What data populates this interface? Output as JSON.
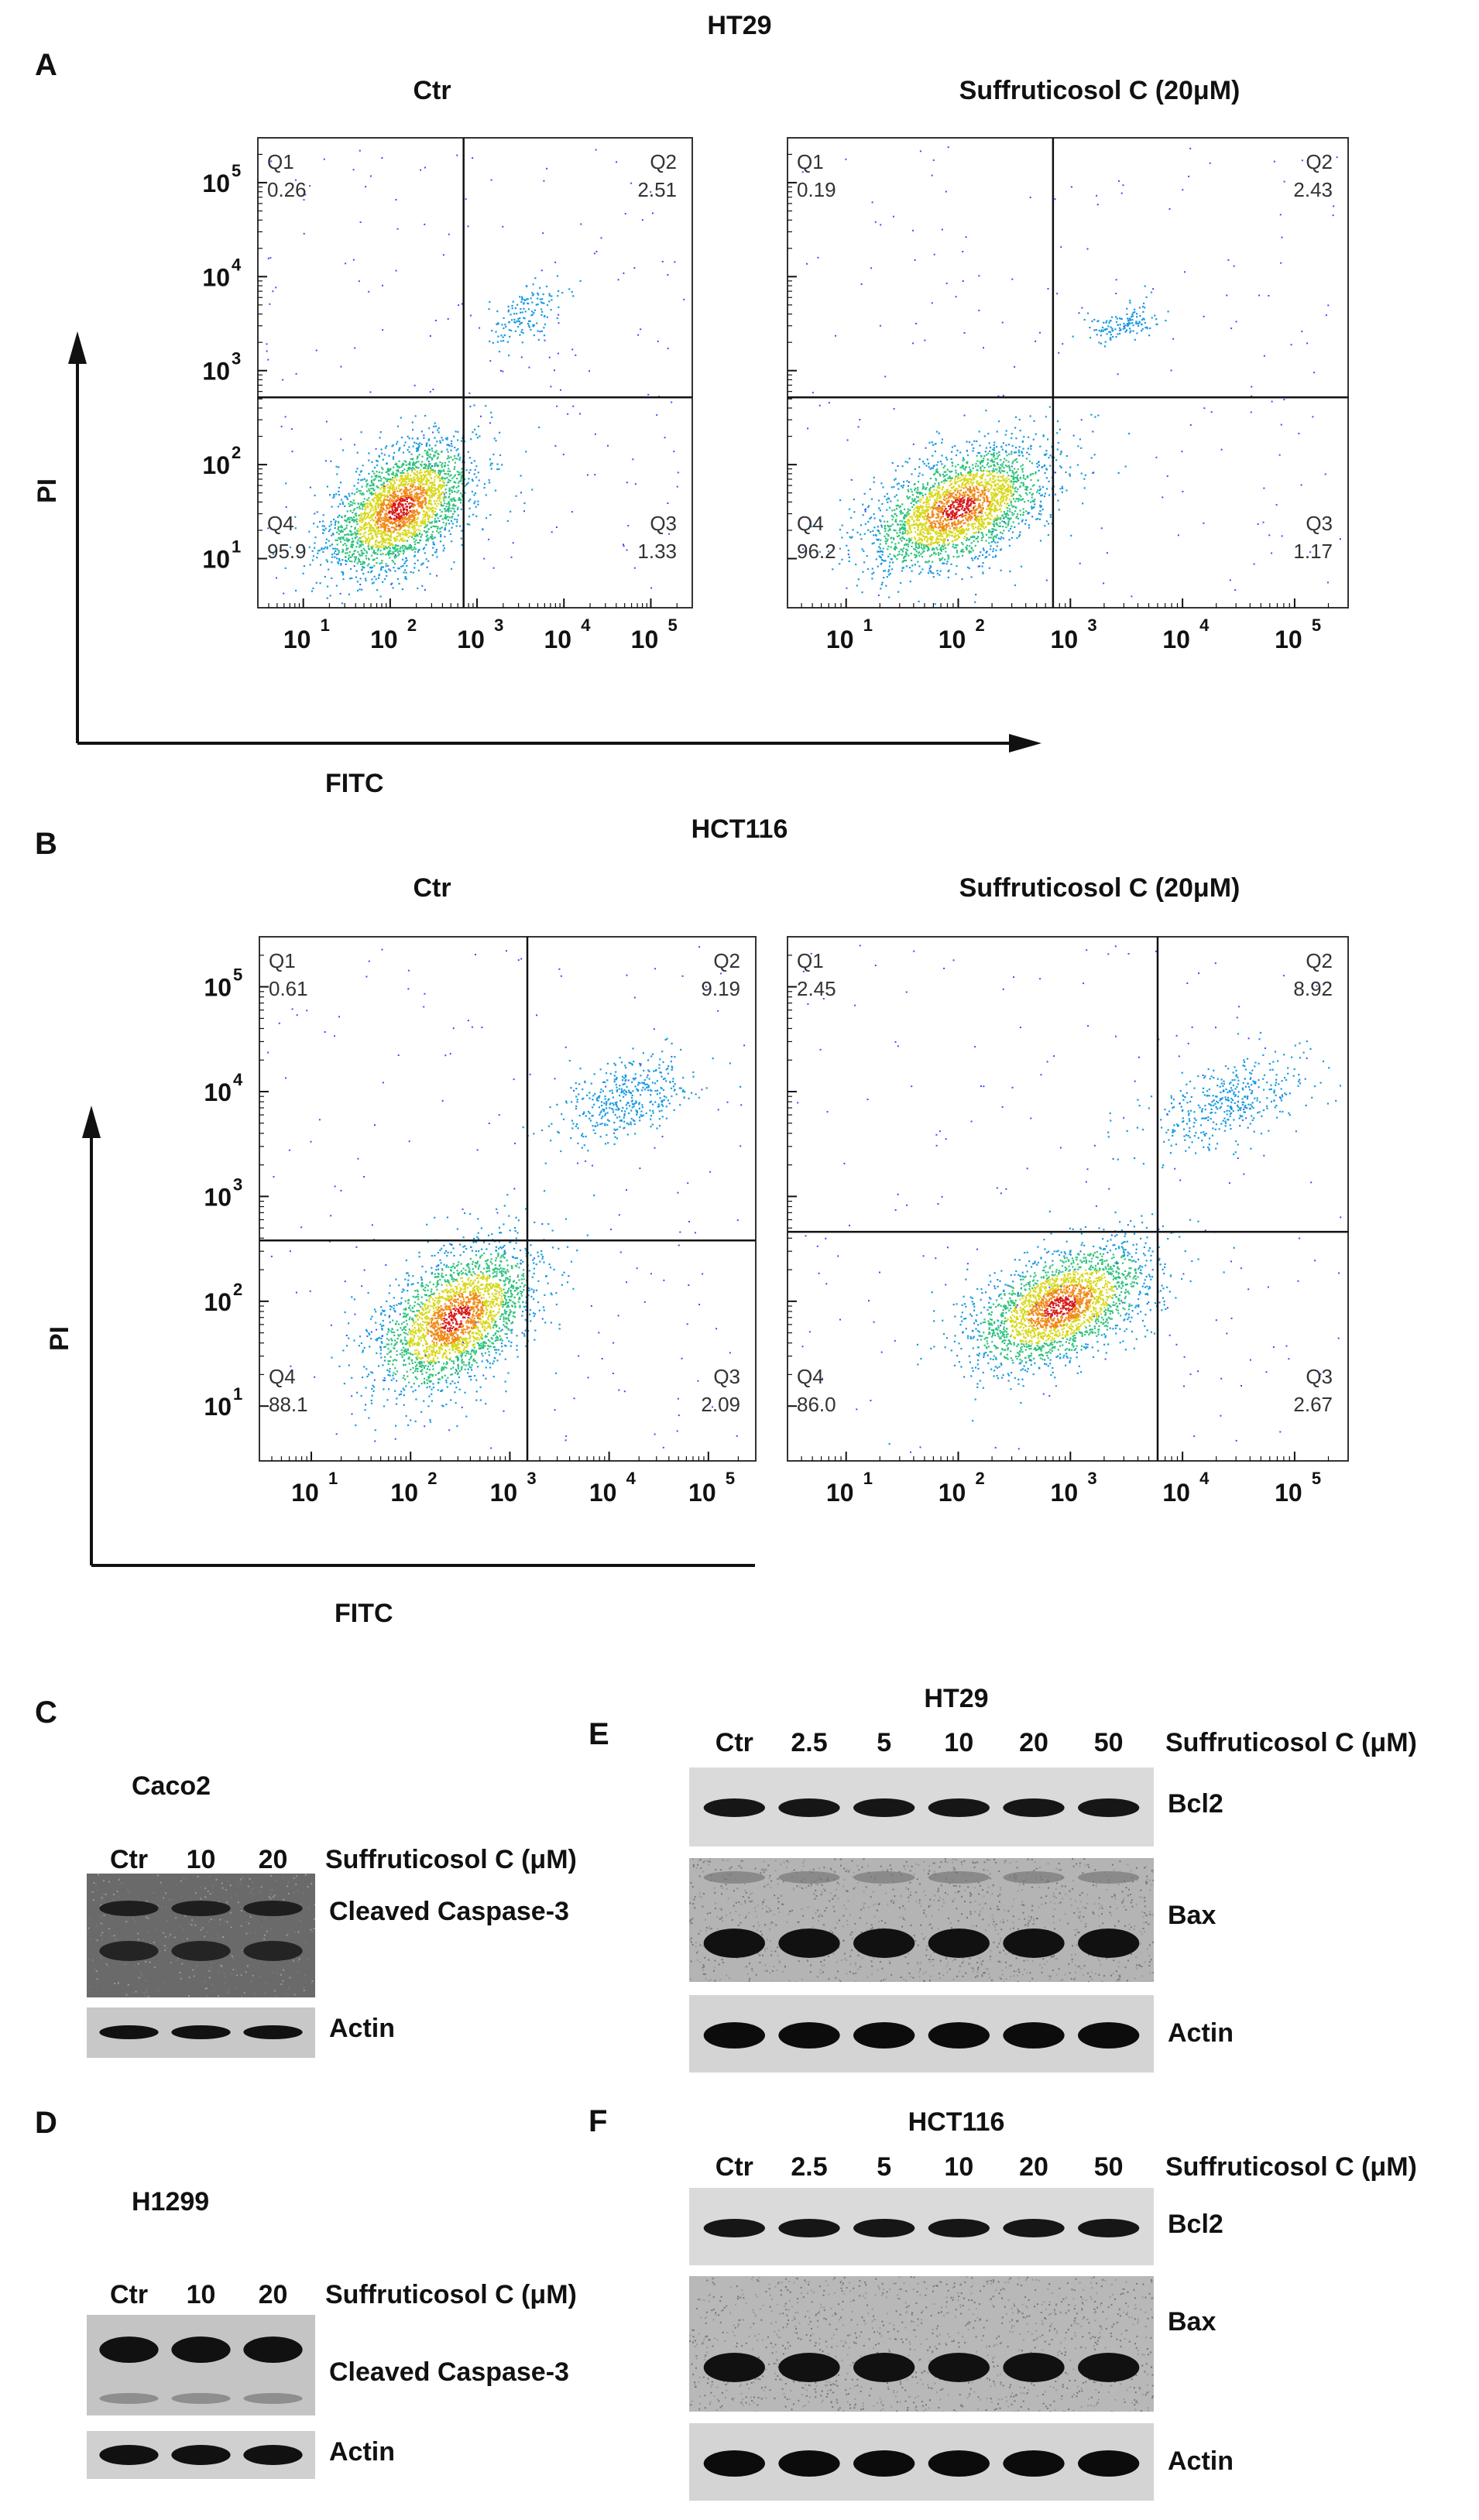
{
  "figure": {
    "panel_a": {
      "letter": "A",
      "cell_line": "HT29"
    },
    "panel_b": {
      "letter": "B",
      "cell_line": "HCT116"
    },
    "panel_c": {
      "letter": "C",
      "cell_line": "Caco2"
    },
    "panel_d": {
      "letter": "D",
      "cell_line": "H1299"
    },
    "panel_e": {
      "letter": "E",
      "cell_line": "HT29"
    },
    "panel_f": {
      "letter": "F",
      "cell_line": "HCT116"
    }
  },
  "axis": {
    "x": "FITC",
    "y": "PI"
  },
  "chart_data": [
    {
      "type": "scatter",
      "id": "A-ctr",
      "cell_line": "HT29",
      "title": "Ctr",
      "xlabel": "FITC",
      "ylabel": "PI",
      "xscale": "log",
      "yscale": "log",
      "x_ticks": [
        "10",
        "10",
        "10",
        "10",
        "10"
      ],
      "x_tick_exponents": [
        "1",
        "2",
        "3",
        "4",
        "5"
      ],
      "y_ticks": [
        "10",
        "10",
        "10",
        "10",
        "10"
      ],
      "y_tick_exponents": [
        "1",
        "2",
        "3",
        "4",
        "5"
      ],
      "xlim": [
        3,
        300000
      ],
      "ylim": [
        3,
        300000
      ],
      "gate": {
        "x": 700,
        "y": 520
      },
      "quadrants": [
        {
          "name": "Q1",
          "value": "0.26",
          "pos": "top-left"
        },
        {
          "name": "Q2",
          "value": "2.51",
          "pos": "top-right"
        },
        {
          "name": "Q3",
          "value": "1.33",
          "pos": "bottom-right"
        },
        {
          "name": "Q4",
          "value": "95.9",
          "pos": "bottom-left"
        }
      ],
      "clusters": [
        {
          "cx": 130,
          "cy": 35,
          "sx": 0.42,
          "sy": 0.38,
          "n": 2600
        },
        {
          "cx": 3500,
          "cy": 4000,
          "sx": 0.22,
          "sy": 0.18,
          "n": 150
        }
      ]
    },
    {
      "type": "scatter",
      "id": "A-suf",
      "cell_line": "HT29",
      "title": "Suffruticosol C (20μM)",
      "xlabel": "FITC",
      "ylabel": "PI",
      "xscale": "log",
      "yscale": "log",
      "x_ticks": [
        "10",
        "10",
        "10",
        "10",
        "10"
      ],
      "x_tick_exponents": [
        "1",
        "2",
        "3",
        "4",
        "5"
      ],
      "xlim": [
        3,
        300000
      ],
      "ylim": [
        3,
        300000
      ],
      "gate": {
        "x": 700,
        "y": 520
      },
      "quadrants": [
        {
          "name": "Q1",
          "value": "0.19",
          "pos": "top-left"
        },
        {
          "name": "Q2",
          "value": "2.43",
          "pos": "top-right"
        },
        {
          "name": "Q3",
          "value": "1.17",
          "pos": "bottom-right"
        },
        {
          "name": "Q4",
          "value": "96.2",
          "pos": "bottom-left"
        }
      ],
      "clusters": [
        {
          "cx": 100,
          "cy": 35,
          "sx": 0.4,
          "sy": 0.36,
          "n": 2600
        },
        {
          "cx": 3000,
          "cy": 3300,
          "sx": 0.16,
          "sy": 0.12,
          "n": 140
        }
      ]
    },
    {
      "type": "scatter",
      "id": "B-ctr",
      "cell_line": "HCT116",
      "title": "Ctr",
      "xlabel": "FITC",
      "ylabel": "PI",
      "xscale": "log",
      "yscale": "log",
      "x_ticks": [
        "10",
        "10",
        "10",
        "10",
        "10"
      ],
      "x_tick_exponents": [
        "1",
        "2",
        "3",
        "4",
        "5"
      ],
      "y_ticks": [
        "10",
        "10",
        "10",
        "10",
        "10"
      ],
      "y_tick_exponents": [
        "1",
        "2",
        "3",
        "4",
        "5"
      ],
      "xlim": [
        3,
        300000
      ],
      "ylim": [
        3,
        300000
      ],
      "gate": {
        "x": 1500,
        "y": 380
      },
      "quadrants": [
        {
          "name": "Q1",
          "value": "0.61",
          "pos": "top-left"
        },
        {
          "name": "Q2",
          "value": "9.19",
          "pos": "top-right"
        },
        {
          "name": "Q3",
          "value": "2.09",
          "pos": "bottom-right"
        },
        {
          "name": "Q4",
          "value": "88.1",
          "pos": "bottom-left"
        }
      ],
      "clusters": [
        {
          "cx": 280,
          "cy": 70,
          "sx": 0.4,
          "sy": 0.38,
          "n": 2500
        },
        {
          "cx": 15000,
          "cy": 9000,
          "sx": 0.35,
          "sy": 0.22,
          "n": 420
        }
      ]
    },
    {
      "type": "scatter",
      "id": "B-suf",
      "cell_line": "HCT116",
      "title": "Suffruticosol C (20μM)",
      "xlabel": "FITC",
      "ylabel": "PI",
      "xscale": "log",
      "yscale": "log",
      "x_ticks": [
        "10",
        "10",
        "10",
        "10",
        "10"
      ],
      "x_tick_exponents": [
        "1",
        "2",
        "3",
        "4",
        "5"
      ],
      "xlim": [
        3,
        300000
      ],
      "ylim": [
        3,
        300000
      ],
      "gate": {
        "x": 6000,
        "y": 460
      },
      "quadrants": [
        {
          "name": "Q1",
          "value": "2.45",
          "pos": "top-left"
        },
        {
          "name": "Q2",
          "value": "8.92",
          "pos": "top-right"
        },
        {
          "name": "Q3",
          "value": "2.67",
          "pos": "bottom-right"
        },
        {
          "name": "Q4",
          "value": "86.0",
          "pos": "bottom-left"
        }
      ],
      "clusters": [
        {
          "cx": 800,
          "cy": 90,
          "sx": 0.4,
          "sy": 0.32,
          "n": 2400
        },
        {
          "cx": 25000,
          "cy": 8000,
          "sx": 0.35,
          "sy": 0.25,
          "n": 420
        }
      ]
    }
  ],
  "westerns": {
    "c": {
      "lanes": [
        "Ctr",
        "10",
        "20"
      ],
      "treatment": "Suffruticosol C (μM)",
      "blots": [
        {
          "label": "Cleaved Caspase-3"
        },
        {
          "label": "Actin"
        }
      ]
    },
    "d": {
      "lanes": [
        "Ctr",
        "10",
        "20"
      ],
      "treatment": "Suffruticosol C (μM)",
      "blots": [
        {
          "label": "Cleaved Caspase-3"
        },
        {
          "label": "Actin"
        }
      ]
    },
    "e": {
      "lanes": [
        "Ctr",
        "2.5",
        "5",
        "10",
        "20",
        "50"
      ],
      "treatment": "Suffruticosol C (μM)",
      "blots": [
        {
          "label": "Bcl2"
        },
        {
          "label": "Bax"
        },
        {
          "label": "Actin"
        }
      ]
    },
    "f": {
      "lanes": [
        "Ctr",
        "2.5",
        "5",
        "10",
        "20",
        "50"
      ],
      "treatment": "Suffruticosol C (μM)",
      "blots": [
        {
          "label": "Bcl2"
        },
        {
          "label": "Bax"
        },
        {
          "label": "Actin"
        }
      ]
    }
  }
}
